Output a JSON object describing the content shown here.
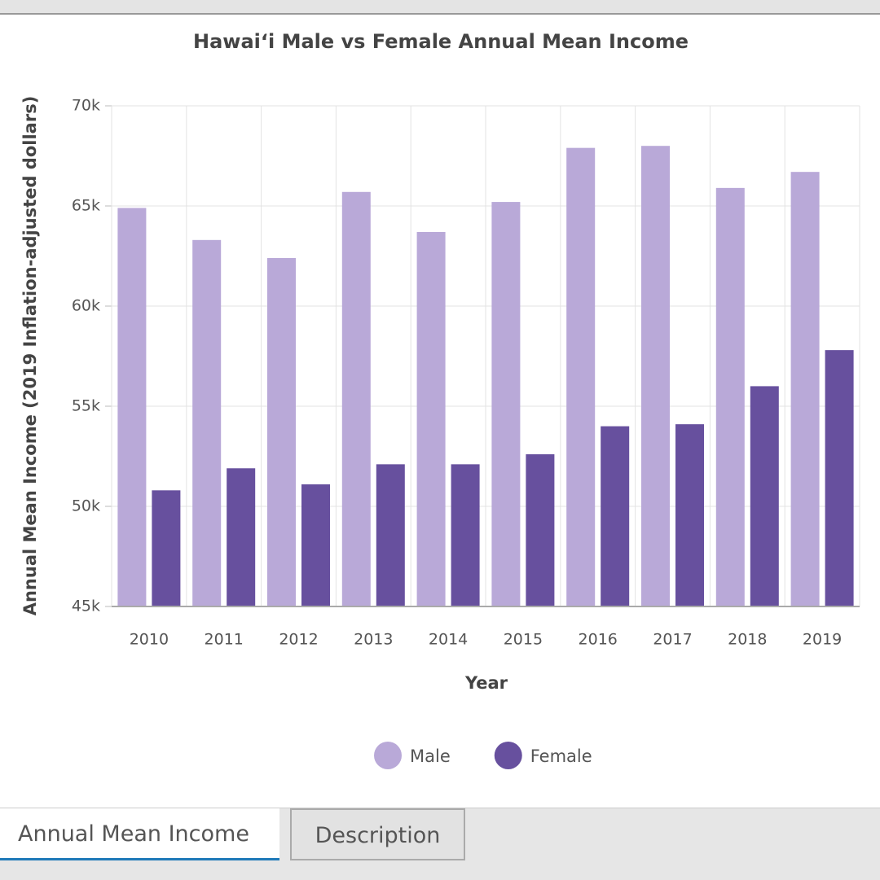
{
  "chart_data": {
    "type": "bar",
    "title": "Hawaiʻi Male vs Female Annual Mean Income",
    "x_label": "Year",
    "y_label": "Annual Mean Income (2019 Inflation-adjusted dollars)",
    "categories": [
      "2010",
      "2011",
      "2012",
      "2013",
      "2014",
      "2015",
      "2016",
      "2017",
      "2018",
      "2019"
    ],
    "series": [
      {
        "name": "Male",
        "color": "#b9a9d8",
        "values": [
          64900,
          63300,
          62400,
          65700,
          63700,
          65200,
          67900,
          68000,
          65900,
          66700
        ]
      },
      {
        "name": "Female",
        "color": "#67509e",
        "values": [
          50800,
          51900,
          51100,
          52100,
          52100,
          52600,
          54000,
          54100,
          56000,
          57800
        ]
      }
    ],
    "ylim": [
      45000,
      70000
    ],
    "yticks": [
      {
        "value": 45000,
        "label": "45k"
      },
      {
        "value": 50000,
        "label": "50k"
      },
      {
        "value": 55000,
        "label": "55k"
      },
      {
        "value": 60000,
        "label": "60k"
      },
      {
        "value": 65000,
        "label": "65k"
      },
      {
        "value": 70000,
        "label": "70k"
      }
    ],
    "grid": true,
    "legend": "bottom"
  },
  "tabs": [
    "Annual Mean Income",
    "Description"
  ]
}
